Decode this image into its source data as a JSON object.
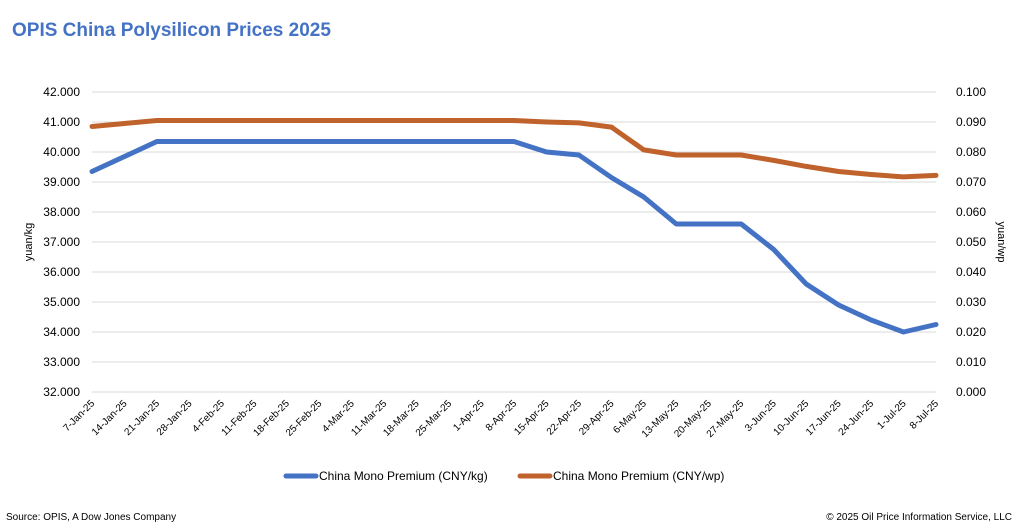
{
  "title": "OPIS China Polysilicon Prices 2025",
  "footer": {
    "source": "Source: OPIS, A Dow Jones Company",
    "copyright": "© 2025 Oil Price Information Service, LLC"
  },
  "colors": {
    "series1": "#4472C4",
    "series2": "#C0622B",
    "title": "#4472C4",
    "grid": "#D9D9D9"
  },
  "chart_data": {
    "type": "line",
    "title": "OPIS China Polysilicon Prices 2025",
    "x": [
      "7-Jan-25",
      "14-Jan-25",
      "21-Jan-25",
      "28-Jan-25",
      "4-Feb-25",
      "11-Feb-25",
      "18-Feb-25",
      "25-Feb-25",
      "4-Mar-25",
      "11-Mar-25",
      "18-Mar-25",
      "25-Mar-25",
      "1-Apr-25",
      "8-Apr-25",
      "15-Apr-25",
      "22-Apr-25",
      "29-Apr-25",
      "6-May-25",
      "13-May-25",
      "20-May-25",
      "27-May-25",
      "3-Jun-25",
      "10-Jun-25",
      "17-Jun-25",
      "24-Jun-25",
      "1-Jul-25",
      "8-Jul-25"
    ],
    "ylabel": "yuan/kg",
    "y2label": "yuan/wp",
    "ylim": [
      32,
      42
    ],
    "y2lim": [
      0,
      0.1
    ],
    "yticks": [
      "32.000",
      "33.000",
      "34.000",
      "35.000",
      "36.000",
      "37.000",
      "38.000",
      "39.000",
      "40.000",
      "41.000",
      "42.000"
    ],
    "y2ticks": [
      "0.000",
      "0.010",
      "0.020",
      "0.030",
      "0.040",
      "0.050",
      "0.060",
      "0.070",
      "0.080",
      "0.090",
      "0.100"
    ],
    "grid": true,
    "legend_position": "bottom",
    "series": [
      {
        "name": "China Mono Premium (CNY/kg)",
        "axis": "left",
        "color": "#4472C4",
        "values": [
          39.35,
          39.85,
          40.35,
          40.35,
          40.35,
          40.35,
          40.35,
          40.35,
          40.35,
          40.35,
          40.35,
          40.35,
          40.35,
          40.35,
          40.0,
          39.9,
          39.15,
          38.5,
          37.6,
          37.6,
          37.6,
          36.75,
          35.6,
          34.9,
          34.4,
          34.0,
          34.25
        ]
      },
      {
        "name": "China Mono Premium (CNY/wp)",
        "axis": "right",
        "color": "#C0622B",
        "values": [
          0.0885,
          0.0895,
          0.0905,
          0.0905,
          0.0905,
          0.0905,
          0.0905,
          0.0905,
          0.0905,
          0.0905,
          0.0905,
          0.0905,
          0.0905,
          0.0905,
          0.09,
          0.0897,
          0.0883,
          0.0807,
          0.079,
          0.079,
          0.079,
          0.0772,
          0.0752,
          0.0735,
          0.0725,
          0.0717,
          0.0722
        ]
      }
    ]
  }
}
